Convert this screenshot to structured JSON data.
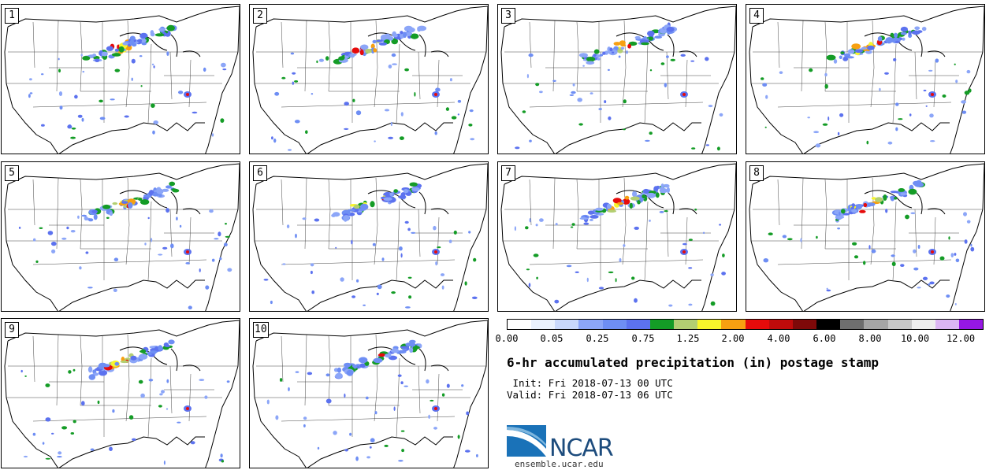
{
  "panels": [
    {
      "label": "1"
    },
    {
      "label": "2"
    },
    {
      "label": "3"
    },
    {
      "label": "4"
    },
    {
      "label": "5"
    },
    {
      "label": "6"
    },
    {
      "label": "7"
    },
    {
      "label": "8"
    },
    {
      "label": "9"
    },
    {
      "label": "10"
    }
  ],
  "colorbar": {
    "colors": [
      "#ffffff",
      "#eaf1fd",
      "#c9d8fb",
      "#8ca6f8",
      "#6e8ef4",
      "#5c72ef",
      "#149c26",
      "#b3cf72",
      "#f8f52b",
      "#f7a011",
      "#e60b0b",
      "#c00b0b",
      "#7e0909",
      "#000000",
      "#6e6e6e",
      "#a5a5a5",
      "#c8c8c8",
      "#eeeeee",
      "#dcb6f3",
      "#9617e3"
    ],
    "tick_labels": [
      "0.00",
      "0.05",
      "0.25",
      "0.75",
      "1.25",
      "2.00",
      "4.00",
      "6.00",
      "8.00",
      "10.00",
      "12.00"
    ]
  },
  "title": "6-hr accumulated precipitation (in) postage stamp",
  "init": " Init: Fri 2018-07-13 00 UTC",
  "valid": "Valid: Fri 2018-07-13 06 UTC",
  "logo": {
    "text": "NCAR",
    "site": "ensemble.ucar.edu"
  }
}
